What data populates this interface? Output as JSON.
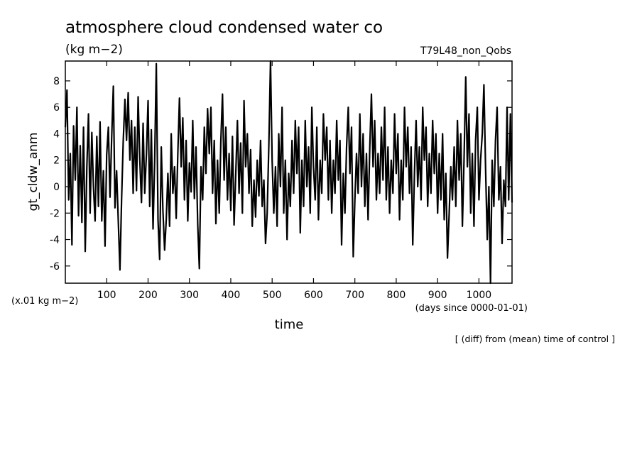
{
  "title": "atmosphere cloud condensed water co",
  "units": "(kg m−2)",
  "experiment": "T79L48_non_Qobs",
  "scale_note": "(x.01 kg m−2)",
  "time_units": "(days since 0000-01-01)",
  "footnote": "[ (diff) from (mean) time of control ]",
  "chart_data": {
    "type": "line",
    "title": "atmosphere cloud condensed water co",
    "xlabel": "time",
    "ylabel": "gt_cldw_anm",
    "xlim": [
      0,
      1080
    ],
    "ylim": [
      -7.3,
      9.5
    ],
    "xticks": [
      100,
      200,
      300,
      400,
      500,
      600,
      700,
      800,
      900,
      1000
    ],
    "yticks": [
      -6,
      -4,
      -2,
      0,
      2,
      4,
      6,
      8
    ],
    "grid": false,
    "series": [
      {
        "values": [
          {
            "x": 0,
            "y": 4.5
          },
          {
            "x": 4,
            "y": 7.3
          },
          {
            "x": 8,
            "y": -1.0
          },
          {
            "x": 12,
            "y": 2.5
          },
          {
            "x": 16,
            "y": -4.4
          },
          {
            "x": 20,
            "y": 4.6
          },
          {
            "x": 24,
            "y": 0.5
          },
          {
            "x": 28,
            "y": 6.0
          },
          {
            "x": 32,
            "y": -2.2
          },
          {
            "x": 36,
            "y": 3.1
          },
          {
            "x": 40,
            "y": -2.7
          },
          {
            "x": 44,
            "y": 4.5
          },
          {
            "x": 48,
            "y": -4.9
          },
          {
            "x": 52,
            "y": 1.5
          },
          {
            "x": 56,
            "y": 5.5
          },
          {
            "x": 60,
            "y": -2.0
          },
          {
            "x": 64,
            "y": 4.1
          },
          {
            "x": 68,
            "y": 0.0
          },
          {
            "x": 72,
            "y": -2.6
          },
          {
            "x": 76,
            "y": 3.8
          },
          {
            "x": 80,
            "y": -1.5
          },
          {
            "x": 84,
            "y": 4.9
          },
          {
            "x": 88,
            "y": -2.6
          },
          {
            "x": 92,
            "y": 1.2
          },
          {
            "x": 96,
            "y": -4.5
          },
          {
            "x": 100,
            "y": 2.4
          },
          {
            "x": 104,
            "y": 4.5
          },
          {
            "x": 108,
            "y": -0.8
          },
          {
            "x": 112,
            "y": 3.6
          },
          {
            "x": 116,
            "y": 7.6
          },
          {
            "x": 120,
            "y": -1.6
          },
          {
            "x": 124,
            "y": 1.2
          },
          {
            "x": 128,
            "y": -2.5
          },
          {
            "x": 132,
            "y": -6.3
          },
          {
            "x": 136,
            "y": -1.0
          },
          {
            "x": 140,
            "y": 3.4
          },
          {
            "x": 144,
            "y": 6.6
          },
          {
            "x": 148,
            "y": 3.5
          },
          {
            "x": 152,
            "y": 7.1
          },
          {
            "x": 156,
            "y": 2.0
          },
          {
            "x": 160,
            "y": 5.0
          },
          {
            "x": 164,
            "y": -0.5
          },
          {
            "x": 168,
            "y": 4.5
          },
          {
            "x": 172,
            "y": -0.3
          },
          {
            "x": 176,
            "y": 6.8
          },
          {
            "x": 180,
            "y": 2.1
          },
          {
            "x": 184,
            "y": -1.2
          },
          {
            "x": 188,
            "y": 4.8
          },
          {
            "x": 192,
            "y": -0.5
          },
          {
            "x": 196,
            "y": 2.5
          },
          {
            "x": 200,
            "y": 6.5
          },
          {
            "x": 204,
            "y": -1.5
          },
          {
            "x": 208,
            "y": 4.3
          },
          {
            "x": 212,
            "y": -3.2
          },
          {
            "x": 216,
            "y": 2.0
          },
          {
            "x": 220,
            "y": 9.3
          },
          {
            "x": 224,
            "y": -2.5
          },
          {
            "x": 228,
            "y": -5.5
          },
          {
            "x": 232,
            "y": 3.0
          },
          {
            "x": 236,
            "y": -1.8
          },
          {
            "x": 240,
            "y": -4.8
          },
          {
            "x": 244,
            "y": -2.5
          },
          {
            "x": 248,
            "y": 1.0
          },
          {
            "x": 252,
            "y": -3.0
          },
          {
            "x": 256,
            "y": 4.0
          },
          {
            "x": 260,
            "y": -0.5
          },
          {
            "x": 264,
            "y": 1.5
          },
          {
            "x": 268,
            "y": -2.4
          },
          {
            "x": 272,
            "y": 2.5
          },
          {
            "x": 276,
            "y": 6.7
          },
          {
            "x": 280,
            "y": 1.5
          },
          {
            "x": 284,
            "y": 5.2
          },
          {
            "x": 288,
            "y": -1.0
          },
          {
            "x": 292,
            "y": 3.5
          },
          {
            "x": 296,
            "y": -2.6
          },
          {
            "x": 300,
            "y": 1.8
          },
          {
            "x": 304,
            "y": -0.4
          },
          {
            "x": 308,
            "y": 5.0
          },
          {
            "x": 312,
            "y": -0.9
          },
          {
            "x": 316,
            "y": 3.0
          },
          {
            "x": 320,
            "y": -2.8
          },
          {
            "x": 324,
            "y": -6.2
          },
          {
            "x": 328,
            "y": 1.5
          },
          {
            "x": 332,
            "y": -1.0
          },
          {
            "x": 336,
            "y": 4.5
          },
          {
            "x": 340,
            "y": 1.0
          },
          {
            "x": 344,
            "y": 5.9
          },
          {
            "x": 348,
            "y": 2.5
          },
          {
            "x": 352,
            "y": 6.0
          },
          {
            "x": 356,
            "y": -0.5
          },
          {
            "x": 360,
            "y": 3.5
          },
          {
            "x": 364,
            "y": -2.8
          },
          {
            "x": 368,
            "y": 2.0
          },
          {
            "x": 372,
            "y": -2.0
          },
          {
            "x": 376,
            "y": 3.5
          },
          {
            "x": 380,
            "y": 7.0
          },
          {
            "x": 384,
            "y": 0.5
          },
          {
            "x": 388,
            "y": 4.5
          },
          {
            "x": 392,
            "y": -1.0
          },
          {
            "x": 396,
            "y": 2.5
          },
          {
            "x": 400,
            "y": -1.8
          },
          {
            "x": 404,
            "y": 3.8
          },
          {
            "x": 408,
            "y": -2.9
          },
          {
            "x": 412,
            "y": 1.0
          },
          {
            "x": 416,
            "y": 5.0
          },
          {
            "x": 420,
            "y": -0.5
          },
          {
            "x": 424,
            "y": 3.3
          },
          {
            "x": 428,
            "y": -2.0
          },
          {
            "x": 432,
            "y": 6.5
          },
          {
            "x": 436,
            "y": 1.5
          },
          {
            "x": 440,
            "y": 4.0
          },
          {
            "x": 444,
            "y": -0.5
          },
          {
            "x": 448,
            "y": 2.8
          },
          {
            "x": 452,
            "y": -3.0
          },
          {
            "x": 456,
            "y": 0.5
          },
          {
            "x": 460,
            "y": -2.3
          },
          {
            "x": 464,
            "y": 2.0
          },
          {
            "x": 468,
            "y": -0.7
          },
          {
            "x": 472,
            "y": 3.5
          },
          {
            "x": 476,
            "y": -1.5
          },
          {
            "x": 480,
            "y": 0.5
          },
          {
            "x": 484,
            "y": -4.3
          },
          {
            "x": 488,
            "y": -2.0
          },
          {
            "x": 492,
            "y": 3.0
          },
          {
            "x": 496,
            "y": 9.5
          },
          {
            "x": 500,
            "y": 2.0
          },
          {
            "x": 504,
            "y": -2.0
          },
          {
            "x": 508,
            "y": 1.5
          },
          {
            "x": 512,
            "y": -3.0
          },
          {
            "x": 516,
            "y": 4.0
          },
          {
            "x": 520,
            "y": 0.0
          },
          {
            "x": 524,
            "y": 6.0
          },
          {
            "x": 528,
            "y": -2.0
          },
          {
            "x": 532,
            "y": 2.0
          },
          {
            "x": 536,
            "y": -4.0
          },
          {
            "x": 540,
            "y": 1.0
          },
          {
            "x": 544,
            "y": -1.5
          },
          {
            "x": 548,
            "y": 3.5
          },
          {
            "x": 552,
            "y": -0.5
          },
          {
            "x": 556,
            "y": 5.0
          },
          {
            "x": 560,
            "y": 1.0
          },
          {
            "x": 564,
            "y": 4.5
          },
          {
            "x": 568,
            "y": -3.5
          },
          {
            "x": 572,
            "y": 2.0
          },
          {
            "x": 576,
            "y": -1.5
          },
          {
            "x": 580,
            "y": 5.0
          },
          {
            "x": 584,
            "y": 0.0
          },
          {
            "x": 588,
            "y": 3.0
          },
          {
            "x": 592,
            "y": -2.0
          },
          {
            "x": 596,
            "y": 6.0
          },
          {
            "x": 600,
            "y": 1.5
          },
          {
            "x": 604,
            "y": -1.0
          },
          {
            "x": 608,
            "y": 4.5
          },
          {
            "x": 612,
            "y": -2.5
          },
          {
            "x": 616,
            "y": 2.0
          },
          {
            "x": 620,
            "y": -0.5
          },
          {
            "x": 624,
            "y": 5.5
          },
          {
            "x": 628,
            "y": 2.0
          },
          {
            "x": 632,
            "y": 4.5
          },
          {
            "x": 636,
            "y": -1.0
          },
          {
            "x": 640,
            "y": 3.5
          },
          {
            "x": 644,
            "y": -2.0
          },
          {
            "x": 648,
            "y": 2.0
          },
          {
            "x": 652,
            "y": -0.5
          },
          {
            "x": 656,
            "y": 5.0
          },
          {
            "x": 660,
            "y": 0.5
          },
          {
            "x": 664,
            "y": 3.5
          },
          {
            "x": 668,
            "y": -4.4
          },
          {
            "x": 672,
            "y": 1.0
          },
          {
            "x": 676,
            "y": -2.0
          },
          {
            "x": 680,
            "y": 3.0
          },
          {
            "x": 684,
            "y": 6.0
          },
          {
            "x": 688,
            "y": 1.0
          },
          {
            "x": 692,
            "y": 4.5
          },
          {
            "x": 696,
            "y": -5.3
          },
          {
            "x": 700,
            "y": -1.0
          },
          {
            "x": 704,
            "y": 2.5
          },
          {
            "x": 708,
            "y": -0.5
          },
          {
            "x": 712,
            "y": 5.5
          },
          {
            "x": 716,
            "y": 0.0
          },
          {
            "x": 720,
            "y": 4.0
          },
          {
            "x": 724,
            "y": -1.5
          },
          {
            "x": 728,
            "y": 2.5
          },
          {
            "x": 732,
            "y": -2.5
          },
          {
            "x": 736,
            "y": 3.0
          },
          {
            "x": 740,
            "y": 7.0
          },
          {
            "x": 744,
            "y": 1.5
          },
          {
            "x": 748,
            "y": 5.0
          },
          {
            "x": 752,
            "y": -1.0
          },
          {
            "x": 756,
            "y": 2.5
          },
          {
            "x": 760,
            "y": -0.5
          },
          {
            "x": 764,
            "y": 4.5
          },
          {
            "x": 768,
            "y": 0.5
          },
          {
            "x": 772,
            "y": 6.0
          },
          {
            "x": 776,
            "y": -1.0
          },
          {
            "x": 780,
            "y": 3.0
          },
          {
            "x": 784,
            "y": -2.0
          },
          {
            "x": 788,
            "y": 2.0
          },
          {
            "x": 792,
            "y": -0.5
          },
          {
            "x": 796,
            "y": 5.5
          },
          {
            "x": 800,
            "y": 1.0
          },
          {
            "x": 804,
            "y": 4.0
          },
          {
            "x": 808,
            "y": -2.5
          },
          {
            "x": 812,
            "y": 2.0
          },
          {
            "x": 816,
            "y": -1.0
          },
          {
            "x": 820,
            "y": 6.0
          },
          {
            "x": 824,
            "y": 1.5
          },
          {
            "x": 828,
            "y": 4.5
          },
          {
            "x": 832,
            "y": -0.5
          },
          {
            "x": 836,
            "y": 3.0
          },
          {
            "x": 840,
            "y": -4.4
          },
          {
            "x": 844,
            "y": 1.0
          },
          {
            "x": 848,
            "y": 5.0
          },
          {
            "x": 852,
            "y": 0.0
          },
          {
            "x": 856,
            "y": 3.0
          },
          {
            "x": 860,
            "y": -1.0
          },
          {
            "x": 864,
            "y": 6.0
          },
          {
            "x": 868,
            "y": 2.0
          },
          {
            "x": 872,
            "y": 4.5
          },
          {
            "x": 876,
            "y": -1.5
          },
          {
            "x": 880,
            "y": 2.5
          },
          {
            "x": 884,
            "y": -0.5
          },
          {
            "x": 888,
            "y": 5.0
          },
          {
            "x": 892,
            "y": 1.0
          },
          {
            "x": 896,
            "y": 4.0
          },
          {
            "x": 900,
            "y": -2.0
          },
          {
            "x": 904,
            "y": 2.5
          },
          {
            "x": 908,
            "y": -1.0
          },
          {
            "x": 912,
            "y": 4.0
          },
          {
            "x": 916,
            "y": -2.5
          },
          {
            "x": 920,
            "y": 1.0
          },
          {
            "x": 924,
            "y": -5.4
          },
          {
            "x": 928,
            "y": -2.0
          },
          {
            "x": 932,
            "y": 1.5
          },
          {
            "x": 936,
            "y": -1.0
          },
          {
            "x": 940,
            "y": 3.0
          },
          {
            "x": 944,
            "y": -1.5
          },
          {
            "x": 948,
            "y": 5.0
          },
          {
            "x": 952,
            "y": 0.5
          },
          {
            "x": 956,
            "y": 4.0
          },
          {
            "x": 960,
            "y": -3.0
          },
          {
            "x": 964,
            "y": 2.0
          },
          {
            "x": 968,
            "y": 8.3
          },
          {
            "x": 972,
            "y": 1.5
          },
          {
            "x": 976,
            "y": 5.5
          },
          {
            "x": 980,
            "y": -2.0
          },
          {
            "x": 984,
            "y": 2.5
          },
          {
            "x": 988,
            "y": -3.0
          },
          {
            "x": 992,
            "y": 3.5
          },
          {
            "x": 996,
            "y": 6.0
          },
          {
            "x": 1000,
            "y": -1.0
          },
          {
            "x": 1004,
            "y": 2.0
          },
          {
            "x": 1008,
            "y": 4.0
          },
          {
            "x": 1012,
            "y": 7.7
          },
          {
            "x": 1016,
            "y": 1.5
          },
          {
            "x": 1020,
            "y": -4.0
          },
          {
            "x": 1024,
            "y": 0.0
          },
          {
            "x": 1028,
            "y": -7.3
          },
          {
            "x": 1032,
            "y": 2.0
          },
          {
            "x": 1036,
            "y": -1.5
          },
          {
            "x": 1040,
            "y": 3.5
          },
          {
            "x": 1044,
            "y": 6.0
          },
          {
            "x": 1048,
            "y": -1.0
          },
          {
            "x": 1052,
            "y": 1.5
          },
          {
            "x": 1056,
            "y": -4.3
          },
          {
            "x": 1060,
            "y": 0.5
          },
          {
            "x": 1064,
            "y": -1.5
          },
          {
            "x": 1068,
            "y": 6.0
          },
          {
            "x": 1072,
            "y": -1.0
          },
          {
            "x": 1076,
            "y": 5.5
          },
          {
            "x": 1080,
            "y": -1.2
          }
        ]
      }
    ]
  }
}
